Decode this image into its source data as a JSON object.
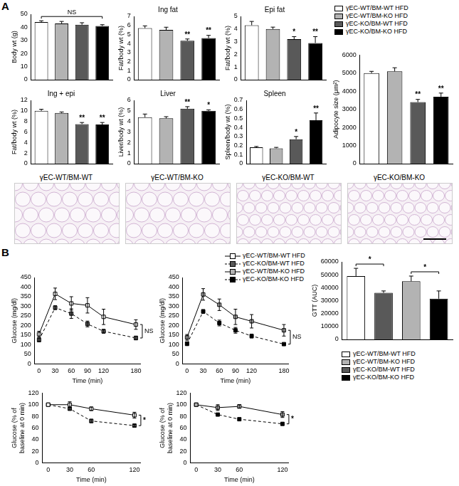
{
  "panel_labels": [
    "A",
    "B"
  ],
  "legends": [
    {
      "entries": [
        {
          "name": "γEC-WT/BM-WT HFD",
          "color": "#ffffff"
        },
        {
          "name": "γEC-WT/BM-KO HFD",
          "color": "#b3b3b3"
        },
        {
          "name": "γEC-KO/BM-WT HFD",
          "color": "#595959"
        },
        {
          "name": "γEC-KO/BM-KO HFD",
          "color": "#000000"
        }
      ]
    },
    {
      "entries": [
        {
          "name": "γEC-WT/BM-WT HFD",
          "color": "#ffffff",
          "marker": "square",
          "line_style": "solid"
        },
        {
          "name": "γEC-KO/BM-WT HFD",
          "color": "#595959",
          "marker": "square",
          "line_style": "dashed"
        },
        {
          "name": "γEC-WT/BM-KO HFD",
          "color": "#b3b3b3",
          "marker": "square",
          "line_style": "solid"
        },
        {
          "name": "γEC-KO/BM-KO HFD",
          "color": "#000000",
          "marker": "square",
          "line_style": "dashed"
        }
      ]
    },
    {
      "entries": [
        {
          "name": "γEC-WT/BM-WT HFD",
          "color": "#ffffff"
        },
        {
          "name": "γEC-WT/BM-KO HFD",
          "color": "#b3b3b3"
        },
        {
          "name": "γEC-KO/BM-WT HFD",
          "color": "#595959"
        },
        {
          "name": "γEC-KO/BM-KO HFD",
          "color": "#000000"
        }
      ]
    }
  ],
  "micrographs": {
    "labels": [
      "γEC-WT/BM-WT",
      "γEC-WT/BM-KO",
      "γEC-KO/BM-WT",
      "γEC-KO/BM-KO"
    ]
  },
  "chart_data": [
    {
      "type": "bar",
      "ylabel": "Body wt (g)",
      "categories": [
        null,
        null,
        null,
        null
      ],
      "values": [
        44,
        43,
        42,
        41
      ],
      "errors": [
        1,
        1.5,
        1.5,
        1
      ],
      "colors": [
        "#ffffff",
        "#b3b3b3",
        "#595959",
        "#000000"
      ],
      "brackets": [
        {
          "from": 0,
          "to": 3,
          "label": "NS"
        }
      ],
      "ylim": [
        0,
        50
      ],
      "yticks": [
        0,
        10,
        20,
        30,
        40,
        50
      ],
      "grid": false,
      "tick_labels": "y"
    },
    {
      "type": "bar",
      "title": "Ing fat",
      "ylabel": "Fat/body wt (%)",
      "categories": [
        null,
        null,
        null,
        null
      ],
      "values": [
        5.7,
        5.5,
        4.3,
        4.6
      ],
      "errors": [
        0.25,
        0.3,
        0.2,
        0.3
      ],
      "colors": [
        "#ffffff",
        "#b3b3b3",
        "#595959",
        "#000000"
      ],
      "annotations": [
        null,
        null,
        "**",
        "**"
      ],
      "ylim": [
        0,
        7
      ],
      "yticks": [
        0,
        1,
        2,
        3,
        4,
        5,
        6,
        7
      ],
      "grid": false,
      "tick_labels": "y"
    },
    {
      "type": "bar",
      "title": "Epi fat",
      "ylabel": "Fat/body wt (%)",
      "categories": [
        null,
        null,
        null,
        null
      ],
      "values": [
        4.3,
        4.0,
        3.2,
        2.9
      ],
      "errors": [
        0.3,
        0.15,
        0.2,
        0.5
      ],
      "colors": [
        "#ffffff",
        "#b3b3b3",
        "#595959",
        "#000000"
      ],
      "annotations": [
        null,
        null,
        "*",
        "**"
      ],
      "ylim": [
        0,
        5
      ],
      "yticks": [
        0,
        1,
        2,
        3,
        4,
        5
      ],
      "grid": false,
      "tick_labels": "y"
    },
    {
      "type": "bar",
      "title": "Ing + epi",
      "ylabel": "Fat/body wt (%)",
      "categories": [
        null,
        null,
        null,
        null
      ],
      "values": [
        10.0,
        9.6,
        7.5,
        7.4
      ],
      "errors": [
        0.3,
        0.2,
        0.3,
        0.4
      ],
      "colors": [
        "#ffffff",
        "#b3b3b3",
        "#595959",
        "#000000"
      ],
      "annotations": [
        null,
        null,
        "**",
        "**"
      ],
      "ylim": [
        0,
        12
      ],
      "yticks": [
        0,
        2,
        4,
        6,
        8,
        10,
        12
      ],
      "grid": false,
      "tick_labels": "y"
    },
    {
      "type": "bar",
      "title": "Liver",
      "ylabel": "Liver/body wt (%)",
      "categories": [
        null,
        null,
        null,
        null
      ],
      "values": [
        4.4,
        4.3,
        5.2,
        5.0
      ],
      "errors": [
        0.3,
        0.15,
        0.2,
        0.1
      ],
      "colors": [
        "#ffffff",
        "#b3b3b3",
        "#595959",
        "#000000"
      ],
      "annotations": [
        null,
        null,
        "**",
        "*"
      ],
      "ylim": [
        0,
        6
      ],
      "yticks": [
        0,
        1,
        2,
        3,
        4,
        5,
        6
      ],
      "grid": false,
      "tick_labels": "y"
    },
    {
      "type": "bar",
      "title": "Spleen",
      "ylabel": "Spleen/body wt (%)",
      "categories": [
        null,
        null,
        null,
        null
      ],
      "values": [
        0.18,
        0.17,
        0.27,
        0.48
      ],
      "errors": [
        0.01,
        0.01,
        0.03,
        0.08
      ],
      "colors": [
        "#ffffff",
        "#b3b3b3",
        "#595959",
        "#000000"
      ],
      "annotations": [
        null,
        null,
        "*",
        "**"
      ],
      "ylim": [
        0,
        0.7
      ],
      "yticks": [
        0,
        0.1,
        0.2,
        0.3,
        0.4,
        0.5,
        0.6,
        0.7
      ],
      "grid": false,
      "tick_labels": "y"
    },
    {
      "type": "bar",
      "ylabel": "Adipocyte size (μm²)",
      "categories": [
        null,
        null,
        null,
        null
      ],
      "values": [
        5000,
        5100,
        3400,
        3700
      ],
      "errors": [
        100,
        200,
        150,
        200
      ],
      "colors": [
        "#ffffff",
        "#b3b3b3",
        "#595959",
        "#000000"
      ],
      "annotations": [
        null,
        null,
        "**",
        "**"
      ],
      "ylim": [
        0,
        6000
      ],
      "yticks": [
        0,
        1000,
        2000,
        3000,
        4000,
        5000,
        6000
      ],
      "grid": false,
      "tick_labels": "y"
    },
    {
      "type": "line",
      "xlabel": "Time (min)",
      "ylabel": "Glucose (mg/dl)",
      "x": [
        0,
        30,
        60,
        90,
        120,
        180
      ],
      "series": [
        {
          "name": "γEC-WT/BM-WT HFD",
          "color": "#ffffff",
          "marker": "square",
          "line_style": "solid",
          "values": [
            155,
            365,
            315,
            305,
            245,
            205
          ],
          "errors": [
            15,
            30,
            35,
            40,
            40,
            25
          ]
        },
        {
          "name": "γEC-KO/BM-WT HFD",
          "color": "#595959",
          "marker": "square",
          "line_style": "dashed",
          "values": [
            125,
            293,
            262,
            208,
            170,
            135
          ],
          "errors": [
            10,
            10,
            25,
            15,
            10,
            10
          ]
        }
      ],
      "bracket": {
        "label": "NS"
      },
      "xlim": [
        -8,
        188
      ],
      "xticks": [
        0,
        30,
        60,
        90,
        120,
        180
      ],
      "ylim": [
        0,
        450
      ],
      "yticks": [
        0,
        50,
        100,
        150,
        200,
        250,
        300,
        350,
        400,
        450
      ],
      "grid": false
    },
    {
      "type": "line",
      "xlabel": "Time (min)",
      "ylabel": "Glucose (mg/dl)",
      "x": [
        0,
        30,
        60,
        90,
        120,
        180
      ],
      "series": [
        {
          "name": "γEC-WT/BM-KO HFD",
          "color": "#b3b3b3",
          "marker": "square",
          "line_style": "solid",
          "values": [
            138,
            362,
            308,
            245,
            222,
            175
          ],
          "errors": [
            15,
            30,
            30,
            40,
            35,
            30
          ]
        },
        {
          "name": "γEC-KO/BM-KO HFD",
          "color": "#000000",
          "marker": "square",
          "line_style": "dashed",
          "values": [
            105,
            273,
            213,
            175,
            145,
            103
          ],
          "errors": [
            10,
            10,
            15,
            15,
            10,
            5
          ]
        }
      ],
      "bracket": {
        "label": "NS"
      },
      "xlim": [
        -8,
        188
      ],
      "xticks": [
        0,
        30,
        60,
        90,
        120,
        180
      ],
      "ylim": [
        0,
        450
      ],
      "yticks": [
        0,
        50,
        100,
        150,
        200,
        250,
        300,
        350,
        400,
        450
      ],
      "grid": false
    },
    {
      "type": "bar",
      "ylabel": "GTT (AUC)",
      "categories": [
        null,
        null,
        null,
        null
      ],
      "values": [
        49000,
        36000,
        45000,
        31500
      ],
      "errors": [
        6000,
        1500,
        4000,
        6000
      ],
      "colors": [
        "#ffffff",
        "#595959",
        "#b3b3b3",
        "#000000"
      ],
      "brackets": [
        {
          "from": 0,
          "to": 1,
          "label": "*"
        },
        {
          "from": 2,
          "to": 3,
          "label": "*"
        }
      ],
      "ylim": [
        0,
        60000
      ],
      "yticks": [
        0,
        10000,
        20000,
        30000,
        40000,
        50000,
        60000
      ],
      "grid": false,
      "tick_labels": "y"
    },
    {
      "type": "line",
      "xlabel": "Time (min)",
      "ylabel": [
        "Glucose (% of",
        "baseline at 0 min)"
      ],
      "x": [
        0,
        30,
        60,
        120
      ],
      "series": [
        {
          "name": "γEC-WT/BM-WT HFD",
          "color": "#ffffff",
          "marker": "square",
          "line_style": "solid",
          "values": [
            100,
            100,
            93,
            82
          ],
          "errors": [
            0,
            5,
            3,
            5
          ]
        },
        {
          "name": "γEC-KO/BM-WT HFD",
          "color": "#595959",
          "marker": "square",
          "line_style": "dashed",
          "values": [
            100,
            93,
            72,
            64
          ],
          "errors": [
            0,
            2,
            3,
            2
          ]
        }
      ],
      "bracket": {
        "label": "*"
      },
      "xlim": [
        -8,
        128
      ],
      "xticks": [
        0,
        30,
        60,
        120
      ],
      "ylim": [
        0,
        120
      ],
      "yticks": [
        0,
        20,
        40,
        60,
        80,
        100,
        120
      ],
      "grid": false
    },
    {
      "type": "line",
      "xlabel": "Time (min)",
      "ylabel": [
        "Glucose (% of",
        "baseline at 0 min)"
      ],
      "x": [
        0,
        30,
        60,
        120
      ],
      "series": [
        {
          "name": "γEC-WT/BM-KO HFD",
          "color": "#b3b3b3",
          "marker": "square",
          "line_style": "solid",
          "values": [
            100,
            95,
            97,
            83
          ],
          "errors": [
            0,
            5,
            3,
            5
          ]
        },
        {
          "name": "γEC-KO/BM-KO HFD",
          "color": "#000000",
          "marker": "square",
          "line_style": "dashed",
          "values": [
            100,
            83,
            75,
            67
          ],
          "errors": [
            0,
            2,
            2,
            2
          ]
        }
      ],
      "bracket": {
        "label": "*"
      },
      "xlim": [
        -8,
        128
      ],
      "xticks": [
        0,
        30,
        60,
        120
      ],
      "ylim": [
        0,
        120
      ],
      "yticks": [
        0,
        20,
        40,
        60,
        80,
        100,
        120
      ],
      "grid": false
    }
  ]
}
